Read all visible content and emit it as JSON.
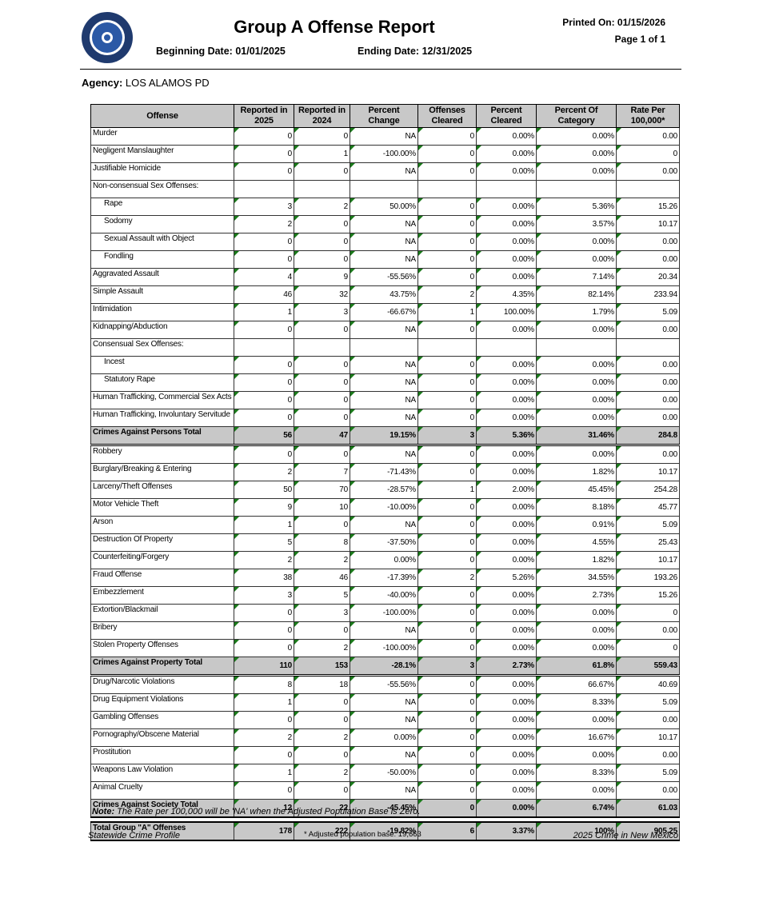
{
  "header": {
    "title": "Group A Offense Report",
    "beginning_label": "Beginning Date:",
    "beginning_date": "01/01/2025",
    "ending_label": "Ending Date:",
    "ending_date": "12/31/2025",
    "printed_on": "Printed On: 01/15/2026",
    "page": "Page 1 of 1"
  },
  "agency": {
    "label": "Agency:",
    "name": "LOS ALAMOS PD"
  },
  "table": {
    "columns": [
      "Offense",
      "Reported in 2025",
      "Reported in 2024",
      "Percent Change",
      "Offenses Cleared",
      "Percent Cleared",
      "Percent Of Category",
      "Rate Per 100,000*"
    ],
    "groups": [
      {
        "items": [
          [
            "Murder",
            "0",
            "0",
            "NA",
            "0",
            "0.00%",
            "0.00%",
            "0.00"
          ],
          [
            "Negligent Manslaughter",
            "0",
            "1",
            "-100.00%",
            "0",
            "0.00%",
            "0.00%",
            "0"
          ],
          [
            "Justifiable Homicide",
            "0",
            "0",
            "NA",
            "0",
            "0.00%",
            "0.00%",
            "0.00"
          ],
          {
            "heading": "Non-consensual Sex Offenses:",
            "rows": [
              [
                "Rape",
                "3",
                "2",
                "50.00%",
                "0",
                "0.00%",
                "5.36%",
                "15.26"
              ],
              [
                "Sodomy",
                "2",
                "0",
                "NA",
                "0",
                "0.00%",
                "3.57%",
                "10.17"
              ],
              [
                "Sexual Assault with Object",
                "0",
                "0",
                "NA",
                "0",
                "0.00%",
                "0.00%",
                "0.00"
              ],
              [
                "Fondling",
                "0",
                "0",
                "NA",
                "0",
                "0.00%",
                "0.00%",
                "0.00"
              ]
            ]
          },
          [
            "Aggravated Assault",
            "4",
            "9",
            "-55.56%",
            "0",
            "0.00%",
            "7.14%",
            "20.34"
          ],
          [
            "Simple Assault",
            "46",
            "32",
            "43.75%",
            "2",
            "4.35%",
            "82.14%",
            "233.94"
          ],
          [
            "Intimidation",
            "1",
            "3",
            "-66.67%",
            "1",
            "100.00%",
            "1.79%",
            "5.09"
          ],
          [
            "Kidnapping/Abduction",
            "0",
            "0",
            "NA",
            "0",
            "0.00%",
            "0.00%",
            "0.00"
          ],
          {
            "heading": "Consensual Sex Offenses:",
            "rows": [
              [
                "Incest",
                "0",
                "0",
                "NA",
                "0",
                "0.00%",
                "0.00%",
                "0.00"
              ],
              [
                "Statutory Rape",
                "0",
                "0",
                "NA",
                "0",
                "0.00%",
                "0.00%",
                "0.00"
              ]
            ]
          },
          [
            "Human Trafficking, Commercial Sex Acts",
            "0",
            "0",
            "NA",
            "0",
            "0.00%",
            "0.00%",
            "0.00"
          ],
          [
            "Human Trafficking, Involuntary Servitude",
            "0",
            "0",
            "NA",
            "0",
            "0.00%",
            "0.00%",
            "0.00"
          ]
        ],
        "total": [
          "Crimes Against Persons Total",
          "56",
          "47",
          "19.15%",
          "3",
          "5.36%",
          "31.46%",
          "284.8"
        ]
      },
      {
        "items": [
          [
            "Robbery",
            "0",
            "0",
            "NA",
            "0",
            "0.00%",
            "0.00%",
            "0.00"
          ],
          [
            "Burglary/Breaking & Entering",
            "2",
            "7",
            "-71.43%",
            "0",
            "0.00%",
            "1.82%",
            "10.17"
          ],
          [
            "Larceny/Theft Offenses",
            "50",
            "70",
            "-28.57%",
            "1",
            "2.00%",
            "45.45%",
            "254.28"
          ],
          [
            "Motor Vehicle Theft",
            "9",
            "10",
            "-10.00%",
            "0",
            "0.00%",
            "8.18%",
            "45.77"
          ],
          [
            "Arson",
            "1",
            "0",
            "NA",
            "0",
            "0.00%",
            "0.91%",
            "5.09"
          ],
          [
            "Destruction Of Property",
            "5",
            "8",
            "-37.50%",
            "0",
            "0.00%",
            "4.55%",
            "25.43"
          ],
          [
            "Counterfeiting/Forgery",
            "2",
            "2",
            "0.00%",
            "0",
            "0.00%",
            "1.82%",
            "10.17"
          ],
          [
            "Fraud Offense",
            "38",
            "46",
            "-17.39%",
            "2",
            "5.26%",
            "34.55%",
            "193.26"
          ],
          [
            "Embezzlement",
            "3",
            "5",
            "-40.00%",
            "0",
            "0.00%",
            "2.73%",
            "15.26"
          ],
          [
            "Extortion/Blackmail",
            "0",
            "3",
            "-100.00%",
            "0",
            "0.00%",
            "0.00%",
            "0"
          ],
          [
            "Bribery",
            "0",
            "0",
            "NA",
            "0",
            "0.00%",
            "0.00%",
            "0.00"
          ],
          [
            "Stolen Property Offenses",
            "0",
            "2",
            "-100.00%",
            "0",
            "0.00%",
            "0.00%",
            "0"
          ]
        ],
        "total": [
          "Crimes Against Property Total",
          "110",
          "153",
          "-28.1%",
          "3",
          "2.73%",
          "61.8%",
          "559.43"
        ]
      },
      {
        "items": [
          [
            "Drug/Narcotic Violations",
            "8",
            "18",
            "-55.56%",
            "0",
            "0.00%",
            "66.67%",
            "40.69"
          ],
          [
            "Drug Equipment Violations",
            "1",
            "0",
            "NA",
            "0",
            "0.00%",
            "8.33%",
            "5.09"
          ],
          [
            "Gambling Offenses",
            "0",
            "0",
            "NA",
            "0",
            "0.00%",
            "0.00%",
            "0.00"
          ],
          [
            "Pornography/Obscene Material",
            "2",
            "2",
            "0.00%",
            "0",
            "0.00%",
            "16.67%",
            "10.17"
          ],
          [
            "Prostitution",
            "0",
            "0",
            "NA",
            "0",
            "0.00%",
            "0.00%",
            "0.00"
          ],
          [
            "Weapons Law Violation",
            "1",
            "2",
            "-50.00%",
            "0",
            "0.00%",
            "8.33%",
            "5.09"
          ],
          [
            "Animal Cruelty",
            "0",
            "0",
            "NA",
            "0",
            "0.00%",
            "0.00%",
            "0.00"
          ]
        ],
        "total": [
          "Crimes Against Society Total",
          "12",
          "22",
          "-45.45%",
          "0",
          "0.00%",
          "6.74%",
          "61.03"
        ]
      }
    ],
    "grand_total": [
      "Total Group \"A\" Offenses",
      "178",
      "222",
      "-19.82%",
      "6",
      "3.37%",
      "100%",
      "905.25"
    ]
  },
  "footer": {
    "note_label": "Note:",
    "note": "The Rate per 100,000 will be 'NA' when the Adjusted Population Base is Zero.",
    "left": "Statewide Crime Profile",
    "center": "* Adjusted population base: 19,663",
    "right": "2025 Crime in New Mexico"
  }
}
